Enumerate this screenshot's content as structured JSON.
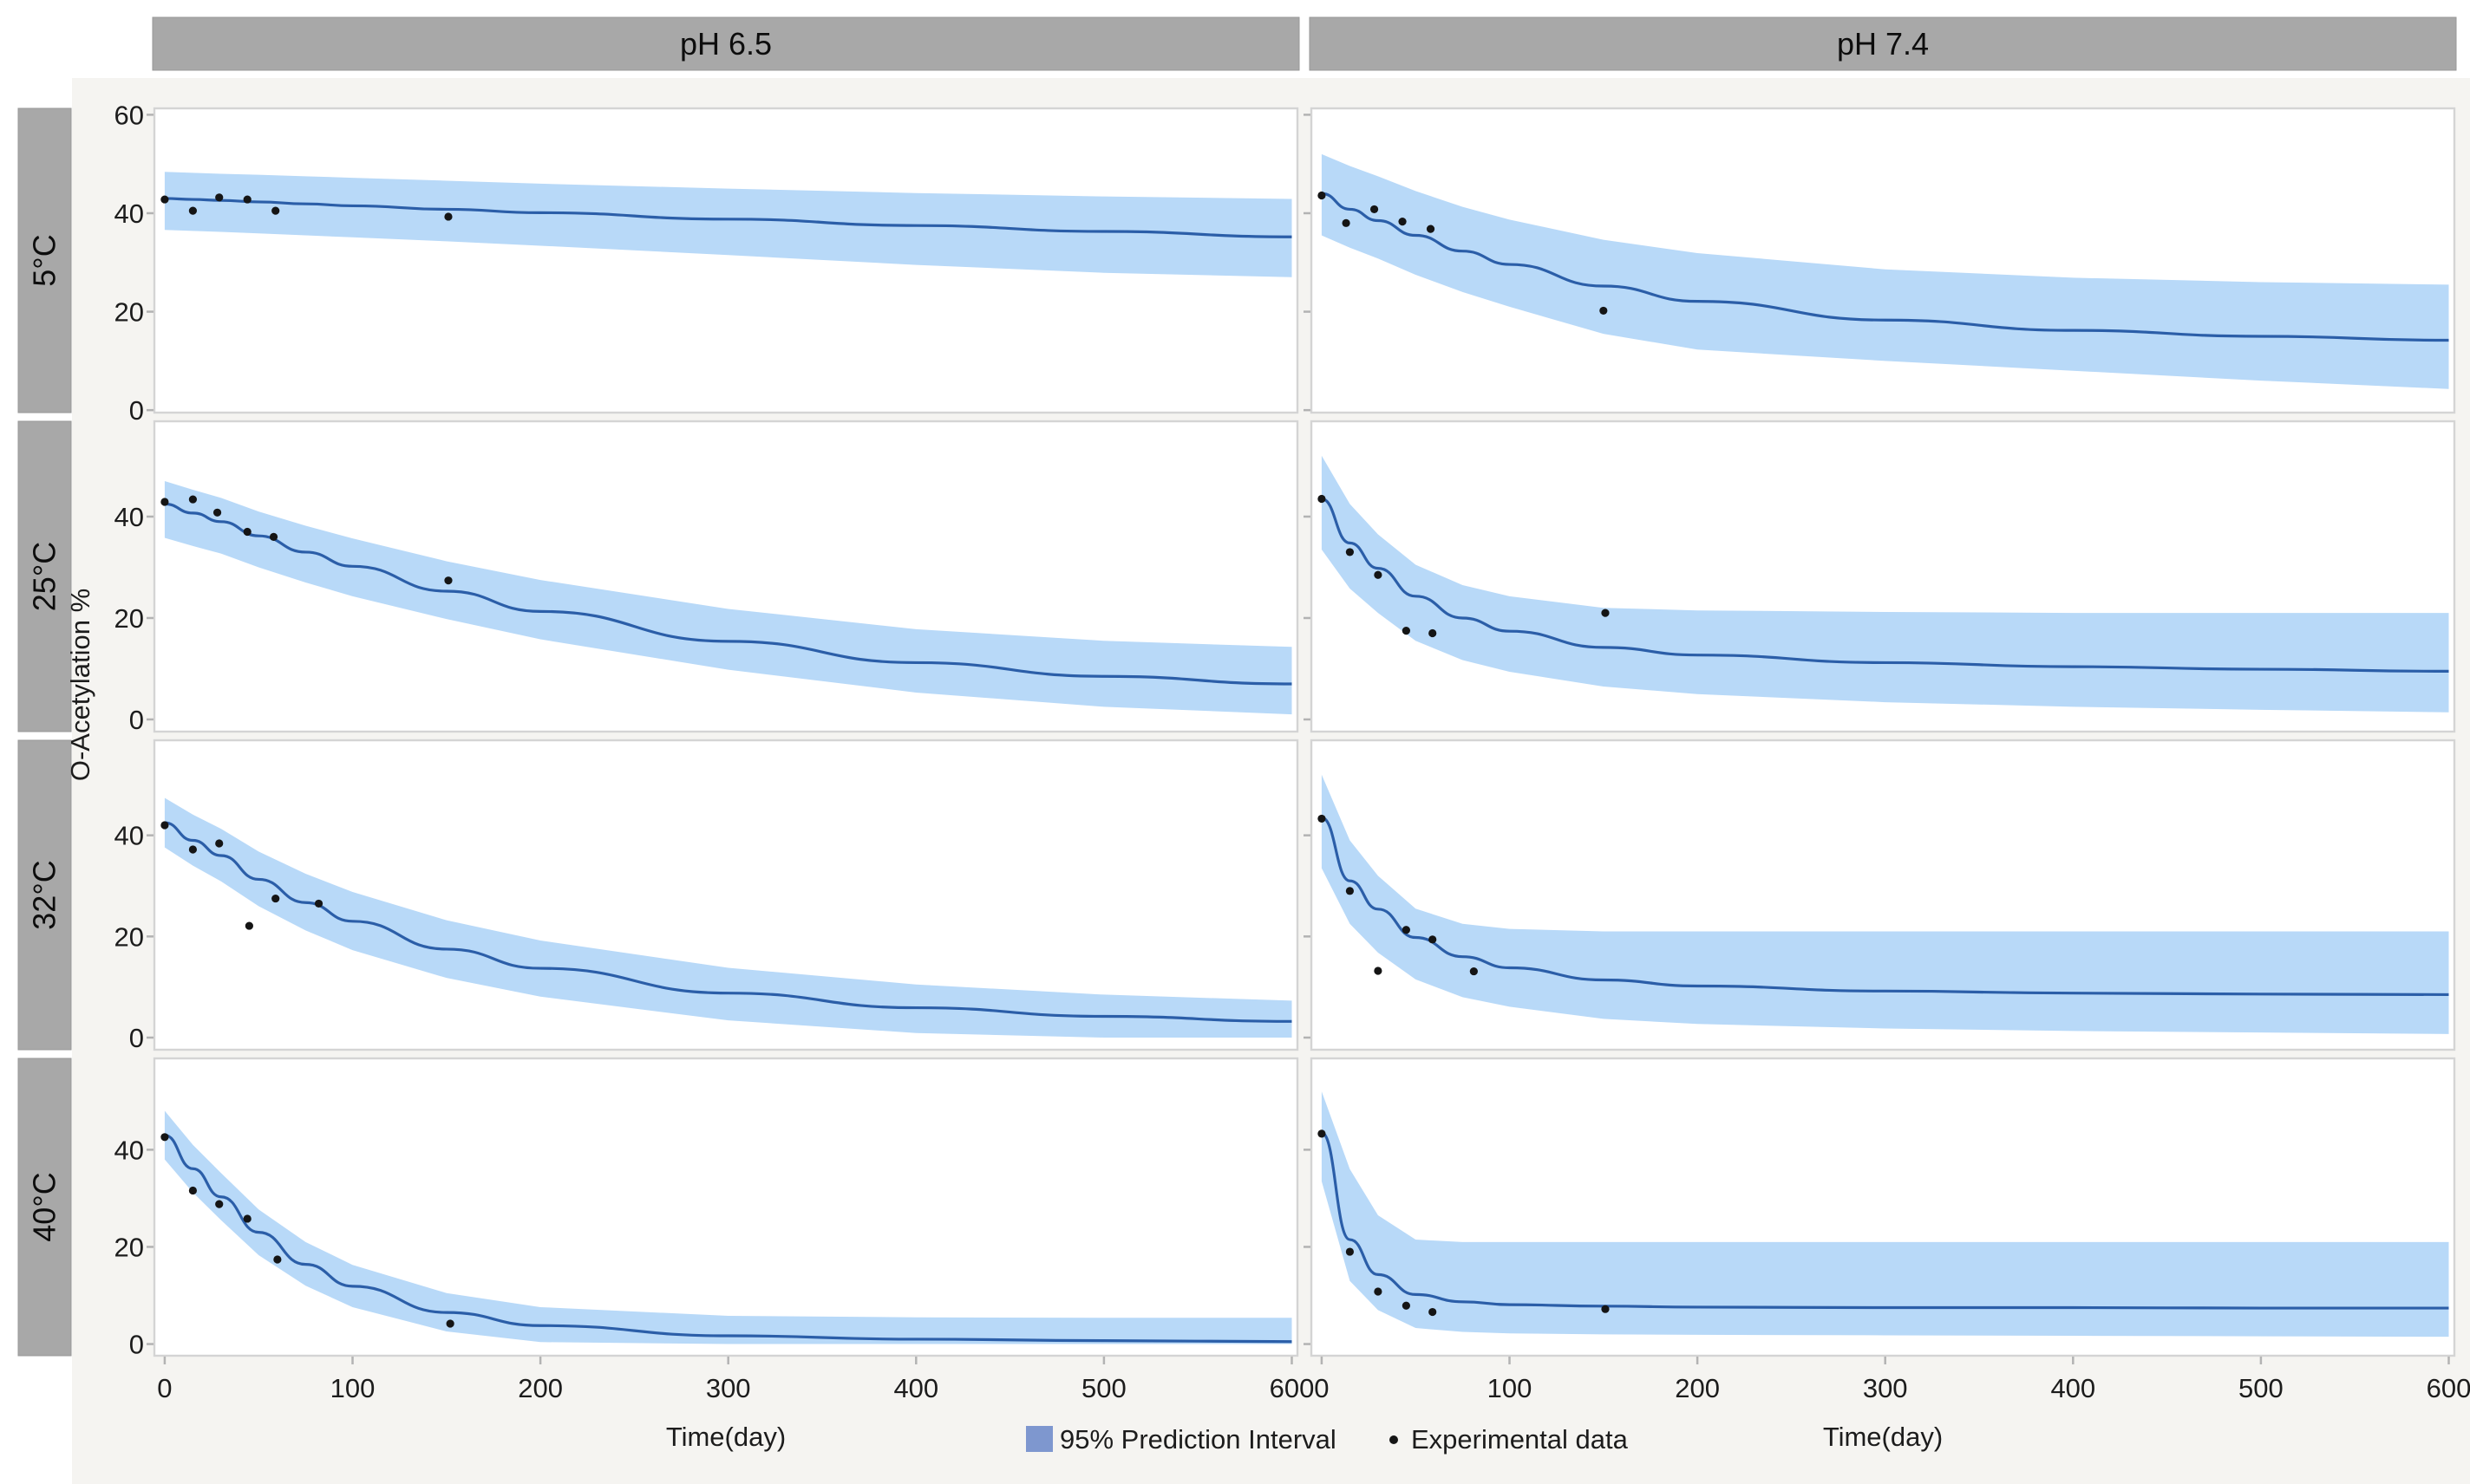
{
  "chart_data": {
    "type": "line",
    "title": "",
    "xlabel": "Time(day)",
    "ylabel": "O-Acetylation %",
    "facet_columns": [
      "pH 6.5",
      "pH 7.4"
    ],
    "facet_rows": [
      "5°C",
      "25°C",
      "32°C",
      "40°C"
    ],
    "x_ticks": [
      0,
      100,
      200,
      300,
      400,
      500,
      600
    ],
    "y_ticks_row1": [
      0,
      20,
      40,
      60
    ],
    "y_ticks_other": [
      0,
      20,
      40
    ],
    "xlim": [
      0,
      600
    ],
    "ylim_row1": [
      0,
      60
    ],
    "ylim_other": [
      0,
      58
    ],
    "grid": "off",
    "legend_position": "bottom",
    "legend": [
      {
        "type": "band",
        "label": "95% Prediction Interval"
      },
      {
        "type": "point",
        "label": "Experimental data"
      }
    ],
    "curve_x": [
      0,
      15,
      30,
      50,
      75,
      100,
      150,
      200,
      300,
      400,
      500,
      600
    ],
    "panels": [
      {
        "row": 0,
        "col": 0,
        "temperature": "5°C",
        "ph": "pH 6.5",
        "curve": [
          43,
          42.8,
          42.6,
          42.3,
          41.9,
          41.5,
          40.8,
          40.1,
          38.8,
          37.5,
          36.3,
          35.2
        ],
        "upper": [
          48.4,
          48.2,
          48.0,
          47.8,
          47.5,
          47.2,
          46.6,
          46.0,
          45.0,
          44.1,
          43.4,
          42.9
        ],
        "lower": [
          36.6,
          36.4,
          36.2,
          35.9,
          35.5,
          35.1,
          34.3,
          33.4,
          31.5,
          29.5,
          27.9,
          27.0
        ],
        "points": [
          [
            0,
            42.8
          ],
          [
            15,
            40.5
          ],
          [
            29,
            43.2
          ],
          [
            44,
            42.8
          ],
          [
            59,
            40.5
          ],
          [
            151,
            39.3
          ]
        ]
      },
      {
        "row": 0,
        "col": 1,
        "temperature": "5°C",
        "ph": "pH 7.4",
        "curve": [
          44,
          40.8,
          38.5,
          35.5,
          32.3,
          29.6,
          25.2,
          22.1,
          18.3,
          16.2,
          15.0,
          14.2
        ],
        "upper": [
          52,
          49.6,
          47.5,
          44.5,
          41.3,
          38.7,
          34.6,
          31.9,
          28.6,
          26.9,
          26.0,
          25.5
        ],
        "lower": [
          35.5,
          33.0,
          30.8,
          27.5,
          24.0,
          21.0,
          15.5,
          12.3,
          10.0,
          8.0,
          6.0,
          4.3
        ],
        "points": [
          [
            0,
            43.6
          ],
          [
            13,
            38.0
          ],
          [
            28,
            40.8
          ],
          [
            43,
            38.3
          ],
          [
            58,
            36.8
          ],
          [
            150,
            20.2
          ]
        ]
      },
      {
        "row": 1,
        "col": 0,
        "temperature": "25°C",
        "ph": "pH 6.5",
        "curve": [
          42.5,
          40.7,
          39.0,
          36.2,
          33.0,
          30.2,
          25.3,
          21.3,
          15.4,
          11.2,
          8.5,
          7.0
        ],
        "upper": [
          47.0,
          45.3,
          43.7,
          41.0,
          38.2,
          35.7,
          31.2,
          27.5,
          21.8,
          17.8,
          15.5,
          14.3
        ],
        "lower": [
          35.8,
          34.2,
          32.7,
          30.0,
          27.0,
          24.3,
          19.8,
          15.8,
          9.8,
          5.3,
          2.5,
          1.0
        ],
        "points": [
          [
            0,
            42.9
          ],
          [
            15,
            43.4
          ],
          [
            28,
            40.8
          ],
          [
            44,
            37.0
          ],
          [
            58,
            36.0
          ],
          [
            151,
            27.4
          ]
        ]
      },
      {
        "row": 1,
        "col": 1,
        "temperature": "25°C",
        "ph": "pH 7.4",
        "curve": [
          43.5,
          34.8,
          29.8,
          24.3,
          20.0,
          17.4,
          14.2,
          12.7,
          11.2,
          10.4,
          9.9,
          9.5
        ],
        "upper": [
          52,
          42.5,
          36.5,
          30.5,
          26.5,
          24.3,
          22.0,
          21.5,
          21.2,
          21.0,
          21.0,
          21.0
        ],
        "lower": [
          33.5,
          25.8,
          21.0,
          15.5,
          11.7,
          9.4,
          6.5,
          5.0,
          3.4,
          2.5,
          1.9,
          1.4
        ],
        "points": [
          [
            0,
            43.5
          ],
          [
            15,
            33.0
          ],
          [
            30,
            28.5
          ],
          [
            45,
            17.5
          ],
          [
            59,
            17.0
          ],
          [
            151,
            21.0
          ]
        ]
      },
      {
        "row": 2,
        "col": 0,
        "temperature": "32°C",
        "ph": "pH 6.5",
        "curve": [
          42.5,
          39.0,
          36.0,
          31.3,
          26.7,
          23.0,
          17.5,
          13.7,
          8.8,
          5.9,
          4.2,
          3.2
        ],
        "upper": [
          47.4,
          44.1,
          41.3,
          36.8,
          32.4,
          28.8,
          23.2,
          19.2,
          13.8,
          10.5,
          8.5,
          7.3
        ],
        "lower": [
          37.6,
          34.0,
          30.9,
          26.0,
          21.2,
          17.3,
          11.8,
          8.1,
          3.4,
          0.9,
          0,
          0
        ],
        "points": [
          [
            0,
            42.0
          ],
          [
            15,
            37.2
          ],
          [
            29,
            38.4
          ],
          [
            45,
            22.1
          ],
          [
            59,
            27.5
          ],
          [
            82,
            26.5
          ]
        ]
      },
      {
        "row": 2,
        "col": 1,
        "temperature": "32°C",
        "ph": "pH 7.4",
        "curve": [
          43.5,
          31.0,
          25.4,
          19.8,
          16.0,
          13.8,
          11.4,
          10.2,
          9.2,
          8.8,
          8.6,
          8.5
        ],
        "upper": [
          52,
          39.0,
          32.0,
          25.5,
          22.5,
          21.5,
          21.0,
          21.0,
          21.0,
          21.0,
          21.0,
          21.0
        ],
        "lower": [
          33.5,
          22.5,
          16.8,
          11.5,
          8.0,
          6.1,
          3.7,
          2.7,
          1.8,
          1.3,
          1.0,
          0.7
        ],
        "points": [
          [
            0,
            43.3
          ],
          [
            15,
            29.0
          ],
          [
            30,
            13.2
          ],
          [
            45,
            21.3
          ],
          [
            59,
            19.4
          ],
          [
            81,
            13.1
          ]
        ]
      },
      {
        "row": 3,
        "col": 0,
        "temperature": "40°C",
        "ph": "pH 6.5",
        "curve": [
          43,
          36.1,
          30.3,
          23.0,
          16.4,
          11.9,
          6.5,
          3.8,
          1.7,
          1.0,
          0.7,
          0.5
        ],
        "upper": [
          48,
          41.0,
          35.2,
          27.7,
          21.0,
          16.3,
          10.5,
          7.6,
          5.8,
          5.5,
          5.4,
          5.4
        ],
        "lower": [
          38,
          31.2,
          25.5,
          18.3,
          12.0,
          7.6,
          2.6,
          0.4,
          0,
          0,
          0,
          0
        ],
        "points": [
          [
            0,
            42.6
          ],
          [
            15,
            31.6
          ],
          [
            29,
            28.8
          ],
          [
            44,
            25.8
          ],
          [
            60,
            17.4
          ],
          [
            152,
            4.2
          ]
        ]
      },
      {
        "row": 3,
        "col": 1,
        "temperature": "40°C",
        "ph": "pH 7.4",
        "curve": [
          43.5,
          21.5,
          14.3,
          10.2,
          8.7,
          8.1,
          7.8,
          7.6,
          7.5,
          7.5,
          7.4,
          7.4
        ],
        "upper": [
          52,
          36.0,
          26.5,
          21.5,
          21.0,
          21.0,
          21.0,
          21.0,
          21.0,
          21.0,
          21.0,
          21.0
        ],
        "lower": [
          33.5,
          13.0,
          7.0,
          3.3,
          2.5,
          2.2,
          2.0,
          1.9,
          1.8,
          1.7,
          1.6,
          1.5
        ],
        "points": [
          [
            0,
            43.3
          ],
          [
            15,
            19.0
          ],
          [
            30,
            10.8
          ],
          [
            45,
            7.9
          ],
          [
            59,
            6.6
          ],
          [
            151,
            7.2
          ]
        ]
      }
    ]
  },
  "colors": {
    "band": "#b8d9f8",
    "fit_line": "#2b5ea8",
    "data_point": "#151515",
    "legend_band_swatch": "#7e97cf",
    "strip_fill": "#a8a8a8",
    "strip_text": "#0d0d0d",
    "panel_fill": "#ffffff",
    "panel_border": "#d4d4d4",
    "figure_bg": "#f5f4f1",
    "tick_mark": "#b3b3b3",
    "tick_text": "#1c1c1c"
  }
}
